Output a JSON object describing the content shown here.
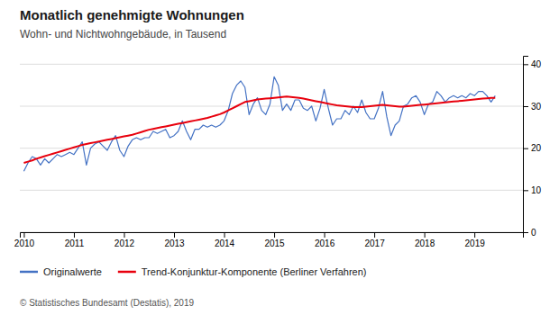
{
  "chart_data": {
    "type": "line",
    "title": "Monatlich genehmigte Wohnungen",
    "subtitle": "Wohn- und Nichtwohngebäude, in Tausend",
    "footnote": "©  Statistisches Bundesamt (Destatis), 2019",
    "x": [
      2010,
      2010.0833,
      2010.1667,
      2010.25,
      2010.3333,
      2010.4167,
      2010.5,
      2010.5833,
      2010.6667,
      2010.75,
      2010.8333,
      2010.9167,
      2011,
      2011.0833,
      2011.1667,
      2011.25,
      2011.3333,
      2011.4167,
      2011.5,
      2011.5833,
      2011.6667,
      2011.75,
      2011.8333,
      2011.9167,
      2012,
      2012.0833,
      2012.1667,
      2012.25,
      2012.3333,
      2012.4167,
      2012.5,
      2012.5833,
      2012.6667,
      2012.75,
      2012.8333,
      2012.9167,
      2013,
      2013.0833,
      2013.1667,
      2013.25,
      2013.3333,
      2013.4167,
      2013.5,
      2013.5833,
      2013.6667,
      2013.75,
      2013.8333,
      2013.9167,
      2014,
      2014.0833,
      2014.1667,
      2014.25,
      2014.3333,
      2014.4167,
      2014.5,
      2014.5833,
      2014.6667,
      2014.75,
      2014.8333,
      2014.9167,
      2015,
      2015.0833,
      2015.1667,
      2015.25,
      2015.3333,
      2015.4167,
      2015.5,
      2015.5833,
      2015.6667,
      2015.75,
      2015.8333,
      2015.9167,
      2016,
      2016.0833,
      2016.1667,
      2016.25,
      2016.3333,
      2016.4167,
      2016.5,
      2016.5833,
      2016.6667,
      2016.75,
      2016.8333,
      2016.9167,
      2017,
      2017.0833,
      2017.1667,
      2017.25,
      2017.3333,
      2017.4167,
      2017.5,
      2017.5833,
      2017.6667,
      2017.75,
      2017.8333,
      2017.9167,
      2018,
      2018.0833,
      2018.1667,
      2018.25,
      2018.3333,
      2018.4167,
      2018.5,
      2018.5833,
      2018.6667,
      2018.75,
      2018.8333,
      2018.9167,
      2019,
      2019.0833,
      2019.1667,
      2019.25,
      2019.3333,
      2019.4167
    ],
    "xlim": [
      2009.92,
      2019.97
    ],
    "xticks": [
      2010,
      2011,
      2012,
      2013,
      2014,
      2015,
      2016,
      2017,
      2018,
      2019
    ],
    "ylim": [
      0,
      42
    ],
    "yticks": [
      0,
      10,
      20,
      30,
      40
    ],
    "grid": true,
    "legend": "bottom",
    "series": [
      {
        "name": "Originalwerte",
        "color": "#4472C4",
        "values": [
          14.5,
          16.5,
          18.0,
          17.5,
          16.0,
          17.5,
          16.5,
          17.5,
          18.5,
          18.0,
          18.5,
          19.0,
          18.5,
          20.0,
          21.5,
          16.0,
          20.0,
          21.0,
          21.5,
          20.5,
          19.5,
          21.5,
          23.0,
          19.5,
          18.0,
          20.5,
          22.0,
          22.5,
          22.0,
          22.5,
          22.5,
          24.0,
          23.5,
          24.0,
          24.5,
          22.5,
          23.0,
          24.0,
          26.5,
          24.0,
          22.0,
          24.5,
          24.5,
          25.5,
          25.0,
          25.5,
          25.0,
          25.5,
          26.5,
          29.0,
          33.0,
          35.0,
          36.0,
          34.5,
          28.0,
          30.5,
          32.0,
          29.0,
          28.0,
          30.5,
          37.0,
          35.0,
          29.0,
          30.5,
          29.0,
          31.5,
          31.5,
          29.5,
          29.0,
          30.0,
          26.5,
          29.5,
          34.0,
          29.5,
          25.5,
          27.0,
          27.0,
          29.0,
          28.0,
          30.0,
          28.5,
          31.5,
          28.5,
          27.0,
          27.0,
          29.5,
          33.5,
          27.5,
          23.0,
          25.5,
          26.5,
          30.0,
          30.5,
          32.0,
          32.5,
          31.0,
          28.0,
          30.5,
          31.0,
          33.5,
          32.5,
          31.0,
          32.0,
          32.5,
          32.0,
          32.5,
          32.0,
          33.0,
          32.5,
          33.5,
          33.5,
          32.5,
          31.0,
          32.5
        ]
      },
      {
        "name": "Trend-Konjunktur-Komponente (Berliner Verfahren)",
        "color": "#E8000D",
        "values": [
          16.5,
          16.8,
          17.1,
          17.5,
          17.8,
          18.1,
          18.4,
          18.7,
          19.0,
          19.3,
          19.6,
          19.9,
          20.2,
          20.5,
          20.8,
          21.0,
          21.2,
          21.4,
          21.6,
          21.8,
          22.0,
          22.2,
          22.4,
          22.6,
          22.8,
          23.0,
          23.2,
          23.5,
          23.8,
          24.1,
          24.4,
          24.6,
          24.8,
          25.0,
          25.2,
          25.4,
          25.6,
          25.8,
          26.0,
          26.2,
          26.4,
          26.6,
          26.8,
          27.0,
          27.2,
          27.5,
          27.8,
          28.1,
          28.5,
          29.0,
          29.5,
          30.0,
          30.5,
          31.0,
          31.2,
          31.4,
          31.6,
          31.7,
          31.8,
          31.9,
          32.0,
          32.1,
          32.2,
          32.3,
          32.2,
          32.1,
          32.0,
          31.8,
          31.6,
          31.4,
          31.2,
          31.0,
          30.8,
          30.6,
          30.4,
          30.2,
          30.1,
          30.0,
          29.9,
          29.8,
          29.8,
          29.8,
          29.9,
          30.0,
          30.1,
          30.2,
          30.3,
          30.2,
          30.1,
          30.0,
          29.9,
          29.9,
          30.0,
          30.1,
          30.2,
          30.3,
          30.4,
          30.5,
          30.6,
          30.7,
          30.8,
          30.9,
          31.0,
          31.1,
          31.2,
          31.3,
          31.4,
          31.5,
          31.6,
          31.7,
          31.8,
          31.9,
          32.0,
          32.0
        ]
      }
    ]
  }
}
